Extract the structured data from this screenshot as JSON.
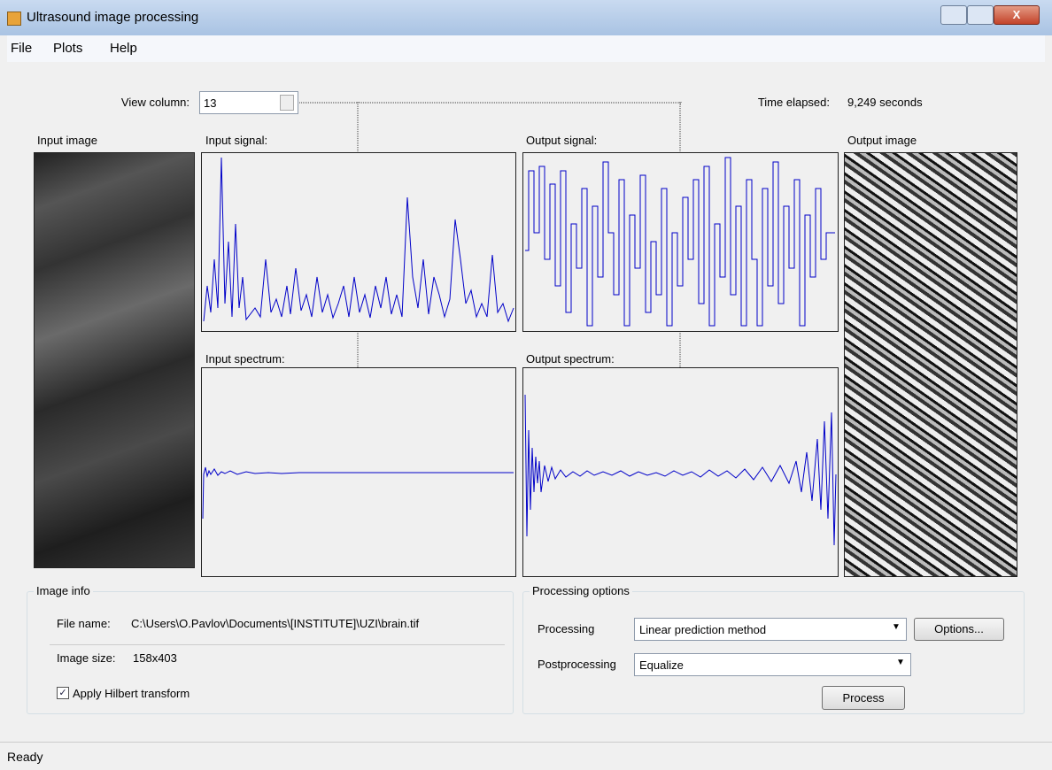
{
  "window": {
    "title": "Ultrasound image processing"
  },
  "menu": [
    "File",
    "Plots",
    "Help"
  ],
  "toolbar": {
    "view_column_label": "View column:",
    "view_column_value": "13",
    "time_elapsed_label": "Time elapsed:",
    "time_elapsed_value": "9,249 seconds"
  },
  "panels": {
    "input_image": "Input image",
    "input_signal": "Input signal:",
    "output_signal": "Output signal:",
    "input_spectrum": "Input spectrum:",
    "output_spectrum": "Output spectrum:",
    "output_image": "Output image"
  },
  "image_info": {
    "title": "Image info",
    "file_name_label": "File name:",
    "file_name": "C:\\Users\\O.Pavlov\\Documents\\[INSTITUTE]\\UZI\\brain.tif",
    "image_size_label": "Image size:",
    "image_size": "158x403",
    "hilbert_checkbox": "Apply Hilbert transform"
  },
  "processing_options": {
    "title": "Processing options",
    "processing_label": "Processing",
    "processing_value": "Linear prediction method",
    "options_button": "Options...",
    "postprocessing_label": "Postprocessing",
    "postprocessing_value": "Equalize",
    "process_button": "Process"
  },
  "status": "Ready"
}
